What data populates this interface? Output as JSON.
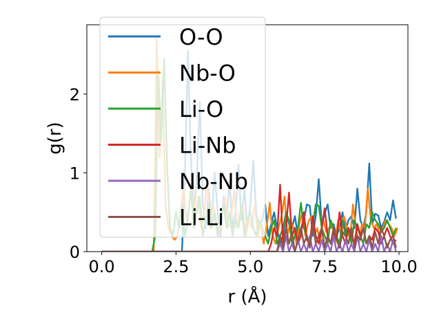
{
  "chart_data": {
    "type": "line",
    "title": "",
    "xlabel": "r (Å)",
    "ylabel": "g(r)",
    "xlim": [
      -0.5,
      10.3
    ],
    "ylim": [
      0,
      2.88
    ],
    "xticks": [
      0.0,
      2.5,
      5.0,
      7.5,
      10.0
    ],
    "xtick_labels": [
      "0.0",
      "2.5",
      "5.0",
      "7.5",
      "10.0"
    ],
    "yticks": [
      0,
      1,
      2
    ],
    "ytick_labels": [
      "0",
      "1",
      "2"
    ],
    "grid": false,
    "legend_position": "upper-left",
    "series": [
      {
        "name": "O-O",
        "color": "#1f77b4",
        "x": [
          0.0,
          2.5,
          2.7,
          2.8,
          2.9,
          3.0,
          3.1,
          3.2,
          3.3,
          3.4,
          3.5,
          3.6,
          3.7,
          3.8,
          3.9,
          4.0,
          4.1,
          4.2,
          4.3,
          4.4,
          4.5,
          4.6,
          4.7,
          4.8,
          4.9,
          5.0,
          5.1,
          5.2,
          5.3,
          5.4,
          5.5,
          5.6,
          5.7,
          5.8,
          5.9,
          6.0,
          6.1,
          6.2,
          6.3,
          6.4,
          6.5,
          6.6,
          6.7,
          6.8,
          6.9,
          7.0,
          7.1,
          7.2,
          7.3,
          7.4,
          7.5,
          7.6,
          7.7,
          7.8,
          7.9,
          8.0,
          8.1,
          8.2,
          8.3,
          8.4,
          8.5,
          8.6,
          8.7,
          8.8,
          8.9,
          9.0,
          9.1,
          9.2,
          9.3,
          9.4,
          9.5,
          9.6,
          9.7,
          9.8,
          9.9
        ],
        "values": [
          0,
          0,
          0,
          1.0,
          2.55,
          1.2,
          0.4,
          0.95,
          1.9,
          0.6,
          0.3,
          0.8,
          0.4,
          1.0,
          0.5,
          0.2,
          0.7,
          0.4,
          0.9,
          0.3,
          0.5,
          1.1,
          0.4,
          0.8,
          0.3,
          0.6,
          1.15,
          0.5,
          0.3,
          0.4,
          0.6,
          0.2,
          0.35,
          0.5,
          0.3,
          0.1,
          0.2,
          0.5,
          0.35,
          0.3,
          0.45,
          0.2,
          0.3,
          0.4,
          0.6,
          0.58,
          0.2,
          0.45,
          0.92,
          0.35,
          0.48,
          0.6,
          0.3,
          0.35,
          0.2,
          0.3,
          0.5,
          0.25,
          0.4,
          0.45,
          0.3,
          0.8,
          0.4,
          0.3,
          0.5,
          1.12,
          0.35,
          0.48,
          0.46,
          0.3,
          0.38,
          0.5,
          0.4,
          0.65,
          0.42
        ]
      },
      {
        "name": "Nb-O",
        "color": "#ff7f0e",
        "x": [
          0.0,
          1.75,
          1.85,
          1.95,
          2.05,
          2.15,
          2.25,
          2.35,
          2.45,
          2.55,
          2.65,
          2.75,
          2.85,
          2.95,
          3.05,
          3.15,
          3.25,
          3.35,
          3.45,
          3.55,
          3.65,
          3.75,
          3.85,
          3.95,
          4.05,
          4.15,
          4.25,
          4.35,
          4.45,
          4.55,
          4.65,
          4.75,
          4.85,
          4.95,
          5.05,
          5.15,
          5.25,
          5.35,
          5.45,
          5.55,
          5.65,
          5.75,
          5.85,
          5.95,
          6.05,
          6.15,
          6.25,
          6.35,
          6.45,
          6.55,
          6.65,
          6.75,
          6.85,
          6.95,
          7.05,
          7.15,
          7.25,
          7.35,
          7.45,
          7.55,
          7.65,
          7.75,
          7.85,
          7.95,
          8.05,
          8.15,
          8.25,
          8.35,
          8.45,
          8.55,
          8.65,
          8.75,
          8.85,
          8.95,
          9.05,
          9.15,
          9.25,
          9.35,
          9.45,
          9.55,
          9.65,
          9.75,
          9.85,
          9.95
        ],
        "values": [
          0,
          0,
          2.7,
          1.2,
          2.2,
          0.6,
          0.3,
          0.2,
          0.15,
          0.2,
          0.5,
          0.8,
          0.4,
          0.6,
          1.0,
          0.4,
          0.7,
          0.3,
          0.5,
          0.9,
          0.3,
          0.6,
          0.4,
          0.2,
          0.5,
          0.7,
          0.3,
          0.4,
          0.8,
          0.3,
          0.5,
          0.6,
          0.2,
          0.4,
          0.3,
          0.6,
          0.2,
          0.35,
          0.1,
          0.3,
          0.62,
          0.2,
          0.1,
          0.3,
          0.45,
          0.7,
          0.2,
          0.4,
          0.3,
          0.1,
          0.35,
          0.5,
          0.2,
          0.38,
          0.45,
          0.2,
          0.3,
          0.1,
          0.42,
          0.25,
          0.3,
          0.35,
          0.1,
          0.4,
          0.2,
          0.45,
          0.3,
          0.15,
          0.6,
          0.3,
          0.1,
          0.35,
          0.3,
          0.8,
          0.4,
          0.3,
          0.35,
          0.2,
          0.3,
          0.4,
          0.35,
          0.3,
          0.2,
          0.3
        ]
      },
      {
        "name": "Li-O",
        "color": "#2ca02c",
        "x": [
          0.0,
          1.7,
          1.8,
          1.9,
          2.0,
          2.1,
          2.2,
          2.3,
          2.4,
          2.5,
          2.6,
          2.7,
          2.8,
          2.9,
          3.0,
          3.1,
          3.2,
          3.3,
          3.4,
          3.5,
          3.6,
          3.7,
          3.8,
          3.9,
          4.0,
          4.1,
          4.2,
          4.3,
          4.4,
          4.5,
          4.6,
          4.7,
          4.8,
          4.9,
          5.0,
          5.1,
          5.2,
          5.3,
          5.4,
          5.5,
          5.6,
          5.7,
          5.8,
          5.9,
          6.0,
          6.1,
          6.2,
          6.3,
          6.4,
          6.5,
          6.6,
          6.7,
          6.8,
          6.9,
          7.0,
          7.1,
          7.2,
          7.3,
          7.4,
          7.5,
          7.6,
          7.7,
          7.8,
          7.9,
          8.0,
          8.1,
          8.2,
          8.3,
          8.4,
          8.5,
          8.6,
          8.7,
          8.8,
          8.9,
          9.0,
          9.1,
          9.2,
          9.3,
          9.4,
          9.5,
          9.6,
          9.7,
          9.8,
          9.9
        ],
        "values": [
          0,
          0,
          0.2,
          2.3,
          1.4,
          2.45,
          1.1,
          0.3,
          0.2,
          0.5,
          0.3,
          0.6,
          0.2,
          0.4,
          0.8,
          0.3,
          0.5,
          0.7,
          0.2,
          0.4,
          0.6,
          0.3,
          0.5,
          0.2,
          0.4,
          0.6,
          0.3,
          0.5,
          0.2,
          0.4,
          0.3,
          0.6,
          0.2,
          0.4,
          0.5,
          0.3,
          0.2,
          0.4,
          0.3,
          0.2,
          0.1,
          0.3,
          0.4,
          0.1,
          0.2,
          0.3,
          0.5,
          0.4,
          0.1,
          0.2,
          0.3,
          0.62,
          0.3,
          0.2,
          0.1,
          0.35,
          0.6,
          0.58,
          0.3,
          0.2,
          0.1,
          0.4,
          0.3,
          0.2,
          0.1,
          0.4,
          0.2,
          0.3,
          0.1,
          0.4,
          0.3,
          0.2,
          0.1,
          0.35,
          0.3,
          0.5,
          0.4,
          0.35,
          0.25,
          0.3,
          0.4,
          0.3,
          0.2,
          0.3
        ]
      },
      {
        "name": "Li-Nb",
        "color": "#d62728",
        "x": [
          0.0,
          5.6,
          5.7,
          5.8,
          5.9,
          6.0,
          6.1,
          6.2,
          6.3,
          6.4,
          6.5,
          6.6,
          6.7,
          6.8,
          6.9,
          7.0,
          7.1,
          7.2,
          7.3,
          7.4,
          7.5,
          7.6,
          7.7,
          7.8,
          7.9,
          8.0,
          8.1,
          8.2,
          8.3,
          8.4,
          8.5,
          8.6,
          8.7,
          8.8,
          8.9,
          9.0,
          9.1,
          9.2,
          9.3,
          9.4,
          9.5,
          9.6,
          9.7,
          9.8,
          9.9
        ],
        "values": [
          0,
          0,
          0.1,
          0.3,
          0.2,
          0.85,
          0.1,
          0.3,
          0.75,
          0.2,
          0.3,
          0.1,
          0.2,
          0.5,
          0.15,
          0.1,
          0.45,
          0.2,
          0.1,
          0.3,
          0.55,
          0.2,
          0.1,
          0.25,
          0.15,
          0.5,
          0.2,
          0.1,
          0.3,
          0.2,
          0.1,
          0.35,
          0.2,
          0.3,
          0.1,
          0.2,
          0.15,
          0.3,
          0.25,
          0.1,
          0.2,
          0.3,
          0.2,
          0.1,
          0.15
        ]
      },
      {
        "name": "Nb-Nb",
        "color": "#9467bd",
        "x": [
          0.0,
          5.9,
          6.0,
          6.1,
          6.2,
          6.3,
          6.4,
          6.5,
          6.6,
          6.7,
          6.8,
          6.9,
          7.0,
          7.1,
          7.2,
          7.3,
          7.4,
          7.5,
          7.6,
          7.7,
          7.8,
          7.9,
          8.0,
          8.1,
          8.2,
          8.3,
          8.4,
          8.5,
          8.6,
          8.7,
          8.8,
          8.9,
          9.0,
          9.1,
          9.2,
          9.3,
          9.4,
          9.5,
          9.6,
          9.7,
          9.8,
          9.9
        ],
        "values": [
          0,
          0,
          0.1,
          0,
          0.2,
          0,
          0.1,
          0,
          0.15,
          0,
          0.1,
          0,
          0.2,
          0,
          0.1,
          0,
          0.15,
          0,
          0.1,
          0,
          0.2,
          0,
          0.1,
          0,
          0.15,
          0,
          0.1,
          0,
          0.2,
          0,
          0.1,
          0,
          0.15,
          0,
          0.1,
          0,
          0.2,
          0,
          0.1,
          0,
          0.15,
          0
        ]
      },
      {
        "name": "Li-Li",
        "color": "#8c564b",
        "x": [
          0.0,
          5.9,
          6.0,
          6.1,
          6.2,
          6.3,
          6.4,
          6.5,
          6.6,
          6.7,
          6.8,
          6.9,
          7.0,
          7.1,
          7.2,
          7.3,
          7.4,
          7.5,
          7.6,
          7.7,
          7.8,
          7.9,
          8.0,
          8.1,
          8.2,
          8.3,
          8.4,
          8.5,
          8.6,
          8.7,
          8.8,
          8.9,
          9.0,
          9.1,
          9.2,
          9.3,
          9.4,
          9.5,
          9.6,
          9.7,
          9.8,
          9.9
        ],
        "values": [
          0,
          0,
          0.2,
          0.05,
          0.3,
          0.1,
          0.25,
          0,
          0.15,
          0.3,
          0.1,
          0.2,
          0.05,
          0.35,
          0.1,
          0.2,
          0.3,
          0.05,
          0.2,
          0.1,
          0.3,
          0.15,
          0.05,
          0.25,
          0.2,
          0.1,
          0.3,
          0.05,
          0.2,
          0.15,
          0.3,
          0.1,
          0.2,
          0.05,
          0.25,
          0.1,
          0.3,
          0.2,
          0.05,
          0.15,
          0.2,
          0.05
        ]
      }
    ]
  }
}
